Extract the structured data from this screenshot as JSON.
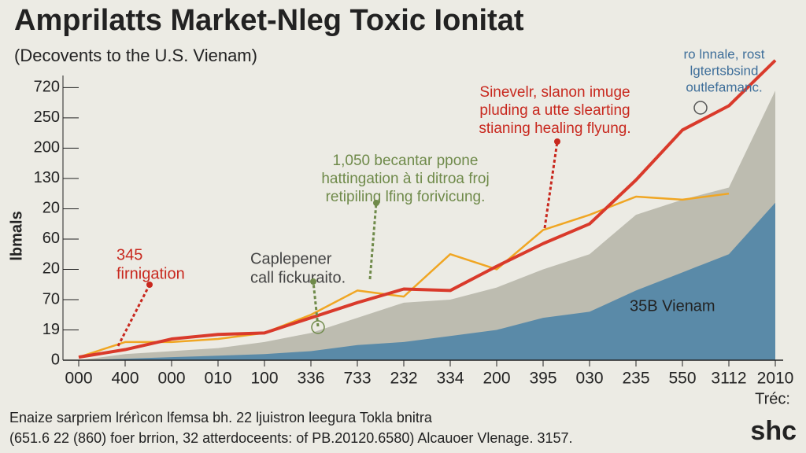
{
  "chart_data": {
    "type": "line",
    "title": "Amprilatts Market-Nleg Toxic Ionitat",
    "subtitle": "(Decovents to the U.S. Vienam)",
    "ylabel": "lbmals",
    "categories": [
      "000",
      "400",
      "000",
      "010",
      "100",
      "336",
      "733",
      "232",
      "334",
      "200",
      "395",
      "030",
      "235",
      "550",
      "3112",
      "2010"
    ],
    "ylim": [
      0,
      9.4
    ],
    "yticks": [
      {
        "value": 0,
        "label": "0"
      },
      {
        "value": 1,
        "label": "19"
      },
      {
        "value": 2,
        "label": "70"
      },
      {
        "value": 3,
        "label": "20"
      },
      {
        "value": 4,
        "label": "60"
      },
      {
        "value": 5,
        "label": "20"
      },
      {
        "value": 6,
        "label": "130"
      },
      {
        "value": 7,
        "label": "200"
      },
      {
        "value": 8,
        "label": "250"
      },
      {
        "value": 9,
        "label": "720"
      }
    ],
    "areas": [
      {
        "color": "#bdbcb0",
        "values": [
          0,
          0.2,
          0.3,
          0.4,
          0.6,
          0.9,
          1.4,
          1.9,
          2.0,
          2.4,
          3.0,
          3.5,
          4.8,
          5.3,
          5.7,
          8.9
        ]
      },
      {
        "color": "#5a8aa8",
        "values": [
          0,
          0.05,
          0.1,
          0.15,
          0.2,
          0.3,
          0.5,
          0.6,
          0.8,
          1.0,
          1.4,
          1.6,
          2.3,
          2.9,
          3.5,
          5.2
        ]
      }
    ],
    "series": [
      {
        "color": "#f0a623",
        "values": [
          0.1,
          0.6,
          0.6,
          0.7,
          0.9,
          1.5,
          2.3,
          2.1,
          3.5,
          3.0,
          4.3,
          4.8,
          5.4,
          5.3,
          5.5,
          null
        ]
      },
      {
        "color": "#d93a2b",
        "values": [
          0.1,
          0.35,
          0.7,
          0.85,
          0.9,
          1.4,
          1.9,
          2.35,
          2.3,
          3.1,
          3.85,
          4.5,
          5.95,
          7.6,
          8.4,
          9.9
        ]
      }
    ],
    "annotations": [
      {
        "lines": [
          "345",
          "firnigation"
        ],
        "color": "#c8281e"
      },
      {
        "lines": [
          "Caplepener",
          "call fickuraito."
        ],
        "color": "#444"
      },
      {
        "lines": [
          "1,050 becantar ppone",
          "hattingation à ti ditroa froj",
          "retipiling lfing forivicung."
        ],
        "color": "#6f8a4a"
      },
      {
        "lines": [
          "Sinevelr, slanon imuge",
          "pluding a utte slearting",
          "stianing healing flyung."
        ],
        "color": "#c8281e"
      },
      {
        "lines": [
          "ro lnnale, rost",
          "lgtertsbsind",
          "outlefamanc."
        ],
        "color": "#3f6f9a"
      }
    ],
    "area_label": "35B Vienam",
    "corner_label": "Tréc:",
    "logo": "shc",
    "footer": [
      "Enaize sarpriem lrérìcon lfemsa bh. 22 ljuistron leegura Tokla bnitra",
      "(651.6 22 (860)  foer brrion, 32 atterdoceents: of PB.20120.6580) Alcauoer Vlenage. 3157."
    ]
  }
}
